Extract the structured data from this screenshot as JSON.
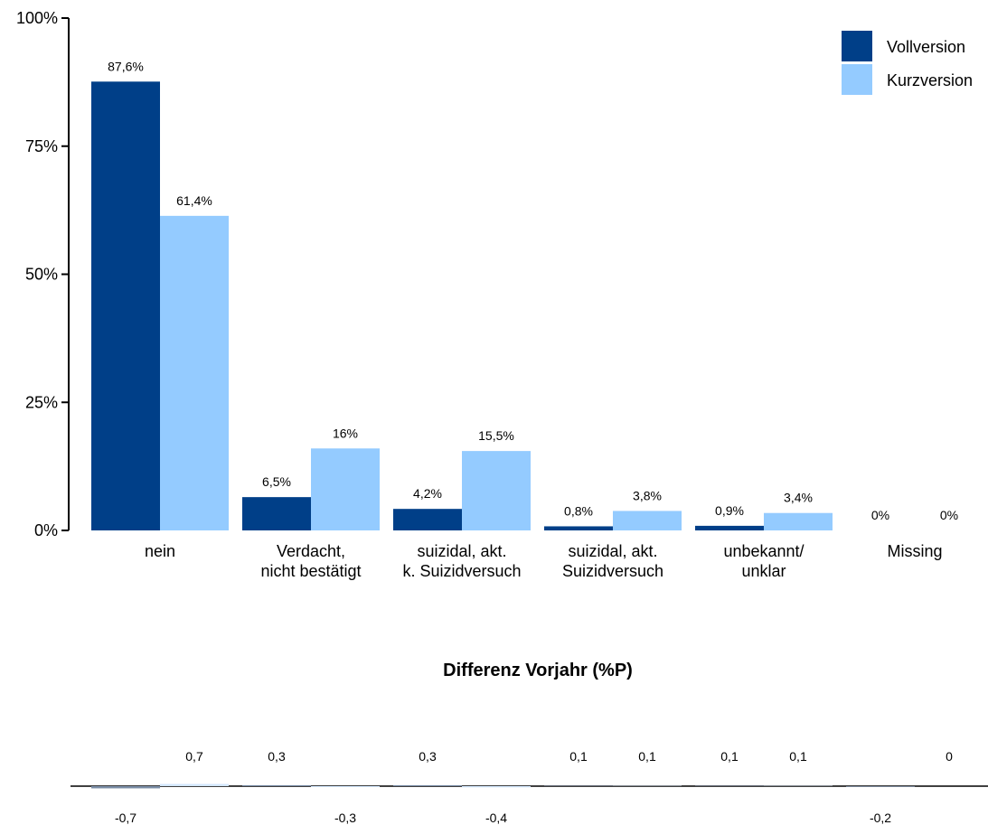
{
  "chart_data": {
    "type": "bar",
    "categories": [
      [
        "nein"
      ],
      [
        "Verdacht,",
        "nicht bestätigt"
      ],
      [
        "suizidal, akt.",
        "k. Suizidversuch"
      ],
      [
        "suizidal, akt.",
        "Suizidversuch"
      ],
      [
        "unbekannt/",
        "unklar"
      ],
      [
        "Missing"
      ]
    ],
    "series": [
      {
        "name": "Vollversion",
        "color": "#003f88",
        "values": [
          87.6,
          6.5,
          4.2,
          0.8,
          0.9,
          0
        ],
        "labels": [
          "87,6%",
          "6,5%",
          "4,2%",
          "0,8%",
          "0,9%",
          "0%"
        ]
      },
      {
        "name": "Kurzversion",
        "color": "#94cbff",
        "values": [
          61.4,
          16,
          15.5,
          3.8,
          3.4,
          0
        ],
        "labels": [
          "61,4%",
          "16%",
          "15,5%",
          "3,8%",
          "3,4%",
          "0%"
        ]
      }
    ],
    "ylim": [
      0,
      100
    ],
    "yticks": [
      0,
      25,
      50,
      75,
      100
    ],
    "ytick_labels": [
      "0%",
      "25%",
      "50%",
      "75%",
      "100%"
    ],
    "legend_position": "top-right",
    "grid": false,
    "difference_panel": {
      "title": "Differenz Vorjahr (%P)",
      "series": [
        {
          "name": "Vollversion",
          "values": [
            -0.7,
            0.3,
            0.3,
            0.1,
            0.1,
            -0.2
          ],
          "labels": [
            "-0,7",
            "0,3",
            "0,3",
            "0,1",
            "0,1",
            "-0,2"
          ]
        },
        {
          "name": "Kurzversion",
          "values": [
            0.7,
            -0.3,
            -0.4,
            0.1,
            0.1,
            0
          ],
          "labels": [
            "0,7",
            "-0,3",
            "-0,4",
            "0,1",
            "0,1",
            "0"
          ]
        }
      ]
    }
  }
}
